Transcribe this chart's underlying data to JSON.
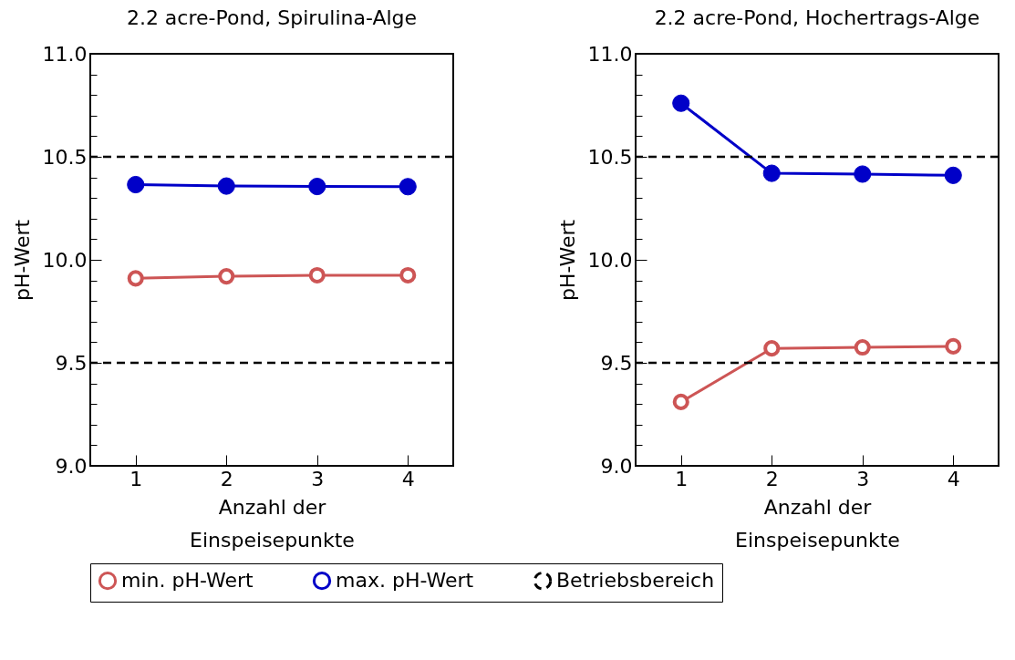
{
  "chart_data": [
    {
      "type": "line",
      "title": "2.2 acre-Pond, Spirulina-Alge",
      "xlabel": "Anzahl der Einspeisepunkte",
      "ylabel": "pH-Wert",
      "x": [
        1,
        2,
        3,
        4
      ],
      "xlim": [
        0.5,
        4.5
      ],
      "xticks": [
        1,
        2,
        3,
        4
      ],
      "ylim": [
        9.0,
        11.0
      ],
      "yticks": [
        {
          "value": 9.0,
          "label": "9.0"
        },
        {
          "value": 9.1,
          "label": null
        },
        {
          "value": 9.2,
          "label": null
        },
        {
          "value": 9.3,
          "label": null
        },
        {
          "value": 9.4,
          "label": null
        },
        {
          "value": 9.5,
          "label": "9.5"
        },
        {
          "value": 9.6,
          "label": null
        },
        {
          "value": 9.7,
          "label": null
        },
        {
          "value": 9.8,
          "label": null
        },
        {
          "value": 9.9,
          "label": null
        },
        {
          "value": 10.0,
          "label": "10.0"
        },
        {
          "value": 10.1,
          "label": null
        },
        {
          "value": 10.2,
          "label": null
        },
        {
          "value": 10.3,
          "label": null
        },
        {
          "value": 10.4,
          "label": null
        },
        {
          "value": 10.5,
          "label": "10.5"
        },
        {
          "value": 10.6,
          "label": null
        },
        {
          "value": 10.7,
          "label": null
        },
        {
          "value": 10.8,
          "label": null
        },
        {
          "value": 10.9,
          "label": null
        },
        {
          "value": 11.0,
          "label": "11.0"
        }
      ],
      "marker": "circle",
      "grid": false,
      "legend": "bottom",
      "series": [
        {
          "name": "min. pH-Wert",
          "color": "#cd5555",
          "values": [
            9.91,
            9.92,
            9.925,
            9.925
          ]
        },
        {
          "name": "max. pH-Wert",
          "color": "#0000c8",
          "values": [
            10.365,
            10.358,
            10.356,
            10.355
          ]
        }
      ],
      "ref_lines": [
        {
          "axis": "y",
          "value": 10.5,
          "label": "Betriebsbereich",
          "color": "#000000",
          "line_style": "dashed"
        },
        {
          "axis": "y",
          "value": 9.5,
          "color": "#000000",
          "line_style": "dashed"
        }
      ]
    },
    {
      "type": "line",
      "title": "2.2 acre-Pond, Hochertrags-Alge",
      "xlabel": "Anzahl der Einspeisepunkte",
      "ylabel": "pH-Wert",
      "x": [
        1,
        2,
        3,
        4
      ],
      "xlim": [
        0.5,
        4.5
      ],
      "xticks": [
        1,
        2,
        3,
        4
      ],
      "ylim": [
        9.0,
        11.0
      ],
      "yticks": [
        {
          "value": 9.0,
          "label": "9.0"
        },
        {
          "value": 9.1,
          "label": null
        },
        {
          "value": 9.2,
          "label": null
        },
        {
          "value": 9.3,
          "label": null
        },
        {
          "value": 9.4,
          "label": null
        },
        {
          "value": 9.5,
          "label": "9.5"
        },
        {
          "value": 9.6,
          "label": null
        },
        {
          "value": 9.7,
          "label": null
        },
        {
          "value": 9.8,
          "label": null
        },
        {
          "value": 9.9,
          "label": null
        },
        {
          "value": 10.0,
          "label": "10.0"
        },
        {
          "value": 10.1,
          "label": null
        },
        {
          "value": 10.2,
          "label": null
        },
        {
          "value": 10.3,
          "label": null
        },
        {
          "value": 10.4,
          "label": null
        },
        {
          "value": 10.5,
          "label": "10.5"
        },
        {
          "value": 10.6,
          "label": null
        },
        {
          "value": 10.7,
          "label": null
        },
        {
          "value": 10.8,
          "label": null
        },
        {
          "value": 10.9,
          "label": null
        },
        {
          "value": 11.0,
          "label": "11.0"
        }
      ],
      "marker": "circle",
      "grid": false,
      "legend": "bottom",
      "series": [
        {
          "name": "min. pH-Wert",
          "color": "#cd5555",
          "values": [
            9.31,
            9.57,
            9.575,
            9.58
          ]
        },
        {
          "name": "max. pH-Wert",
          "color": "#0000c8",
          "values": [
            10.76,
            10.42,
            10.416,
            10.41
          ]
        }
      ],
      "ref_lines": [
        {
          "axis": "y",
          "value": 10.5,
          "color": "#000000",
          "line_style": "dashed"
        },
        {
          "axis": "y",
          "value": 9.5,
          "color": "#000000",
          "line_style": "dashed"
        }
      ]
    }
  ]
}
